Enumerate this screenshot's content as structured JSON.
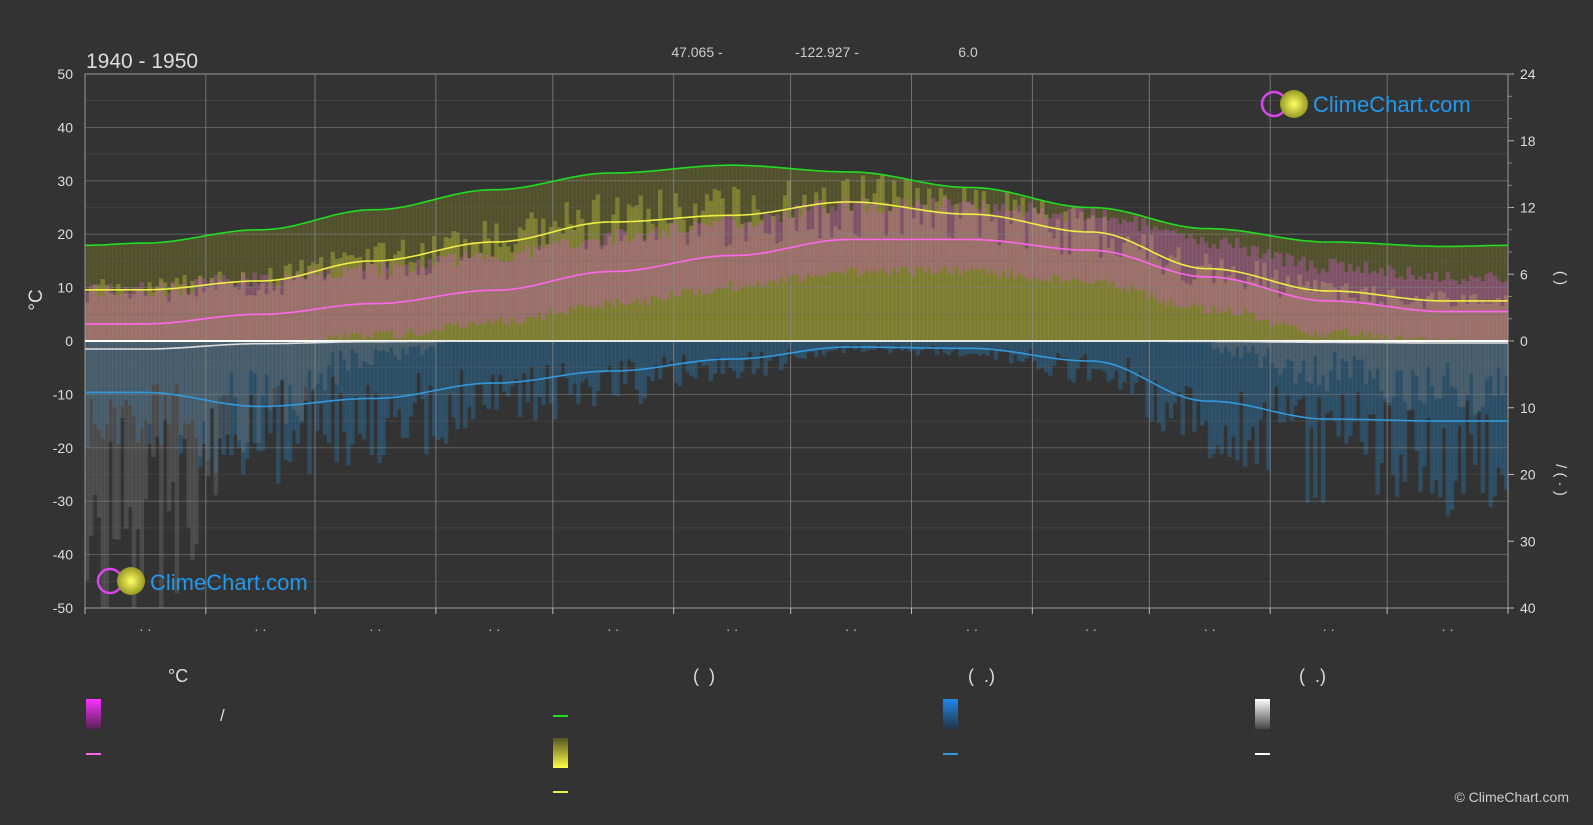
{
  "header": {
    "period": "1940 - 1950",
    "latitude": "47.065 -",
    "longitude": "-122.927 -",
    "elevation": "6.0"
  },
  "branding": {
    "logo_text": "ClimeChart.com",
    "copyright": "© ClimeChart.com"
  },
  "colors": {
    "background": "#333333",
    "daylight": "#22dd22",
    "sunshine": "#eeee44",
    "temp_mean": "#ff66ee",
    "precip": "#3399dd",
    "snow": "#dddddd",
    "zero_line": "#ffffff"
  },
  "chart_data": {
    "type": "line",
    "title": "",
    "x_tick_labels": [
      "· ·",
      "· ·",
      "· ·",
      "· ·",
      "· ·",
      "· ·",
      "· ·",
      "· ·",
      "· ·",
      "· ·",
      "· ·",
      "· ·"
    ],
    "y_left": {
      "label": "°C",
      "range": [
        -50,
        50
      ],
      "ticks": [
        "50",
        "40",
        "30",
        "20",
        "10",
        "0",
        "-10",
        "-20",
        "-30",
        "-40",
        "-50"
      ]
    },
    "y_right_top": {
      "label": "(  )",
      "range": [
        0,
        24
      ],
      "ticks": [
        "24",
        "18",
        "12",
        "6",
        "0"
      ]
    },
    "y_right_bottom": {
      "label": "/ (  ·  )",
      "range": [
        0,
        40
      ],
      "ticks": [
        "10",
        "20",
        "30",
        "40"
      ]
    },
    "grid": true,
    "x": [
      0,
      15,
      45,
      74,
      105,
      135,
      166,
      196,
      227,
      258,
      288,
      319,
      349,
      365
    ],
    "series": [
      {
        "key": "daylight",
        "values": [
          8.6,
          8.8,
          10.0,
          11.8,
          13.6,
          15.1,
          15.8,
          15.2,
          13.8,
          12.0,
          10.1,
          8.9,
          8.5,
          8.6
        ]
      },
      {
        "key": "sunshine",
        "values": [
          4.6,
          4.6,
          5.4,
          7.2,
          8.9,
          10.7,
          11.3,
          12.5,
          11.4,
          9.8,
          6.5,
          4.5,
          3.6,
          3.6
        ]
      },
      {
        "key": "temp_mean",
        "values": [
          3.2,
          3.2,
          5.0,
          7.0,
          9.5,
          13.0,
          16.0,
          19.0,
          19.0,
          17.0,
          12.0,
          7.5,
          5.5,
          5.5
        ]
      },
      {
        "key": "precip",
        "values": [
          7.7,
          7.7,
          9.8,
          8.6,
          6.3,
          4.5,
          2.7,
          0.9,
          1.1,
          3.0,
          9.0,
          11.7,
          12.0,
          12.0
        ]
      },
      {
        "key": "snow",
        "values": [
          1.2,
          1.2,
          0.4,
          0.1,
          0,
          0,
          0,
          0,
          0,
          0,
          0.05,
          0.2,
          0.3,
          0.3
        ]
      }
    ],
    "legend": {
      "col1": {
        "header": "°C",
        "item1": "/",
        "item2": ""
      },
      "col2": {
        "header": "(  )",
        "item1": "",
        "item2": "",
        "item3": ""
      },
      "col3": {
        "header": "(  .)",
        "item1": "",
        "item2": ""
      },
      "col4": {
        "header": "(  .)",
        "item1": "",
        "item2": ""
      }
    }
  }
}
